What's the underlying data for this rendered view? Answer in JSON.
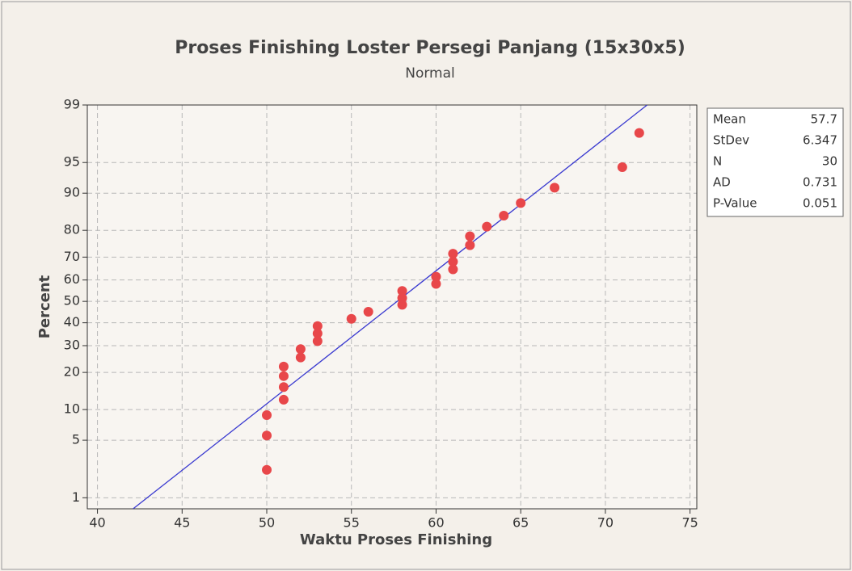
{
  "chart_data": {
    "type": "probability",
    "title": "Proses Finishing Loster Persegi Panjang (15x30x5)",
    "subtitle": "Normal",
    "x_label": "Waktu Proses Finishing",
    "y_label": "Percent",
    "yscale": "probability",
    "grid": true,
    "x": [
      50,
      50,
      50,
      51,
      51,
      51,
      51,
      52,
      52,
      53,
      53,
      53,
      55,
      56,
      58,
      58,
      58,
      60,
      60,
      61,
      61,
      61,
      62,
      62,
      63,
      64,
      65,
      67,
      71,
      72
    ],
    "y": [
      2.3,
      5.6,
      8.9,
      12.2,
      15.5,
      18.8,
      22.0,
      25.3,
      28.6,
      31.9,
      35.2,
      38.5,
      41.8,
      45.1,
      48.4,
      51.6,
      54.9,
      58.2,
      61.5,
      64.8,
      68.1,
      71.4,
      74.7,
      78.0,
      81.2,
      84.5,
      87.8,
      91.1,
      94.4,
      97.7
    ],
    "color": "#e8474a",
    "fit_color": "#3a3ad0",
    "xlim": [
      39.4,
      75.4
    ],
    "xticks": [
      40,
      45,
      50,
      55,
      60,
      65,
      70,
      75
    ],
    "ylim": [
      0.7,
      99
    ],
    "yticks": [
      1,
      5,
      10,
      20,
      30,
      40,
      50,
      60,
      70,
      80,
      90,
      95,
      99
    ],
    "stats": [
      {
        "label": "Mean",
        "value": 57.7
      },
      {
        "label": "StDev",
        "value": 6.347
      },
      {
        "label": "N",
        "value": 30
      },
      {
        "label": "AD",
        "value": 0.731
      },
      {
        "label": "P-Value",
        "value": 0.051
      }
    ]
  }
}
